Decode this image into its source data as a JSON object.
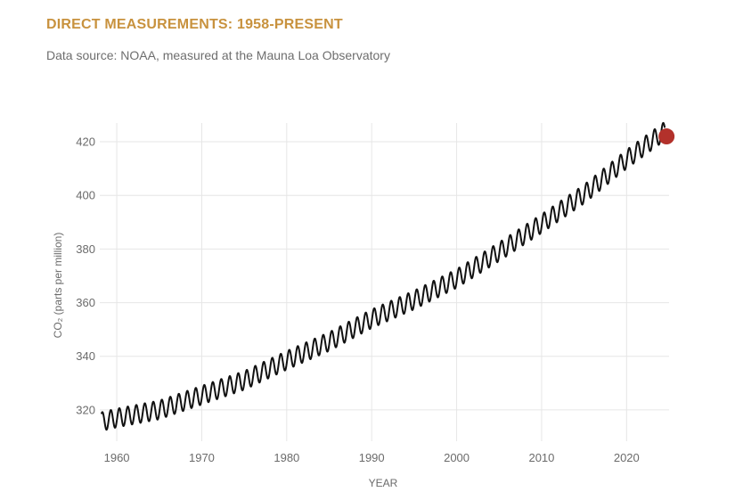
{
  "header": {
    "title": "DIRECT MEASUREMENTS: 1958-PRESENT",
    "subtitle": "Data source: NOAA, measured at the Mauna Loa Observatory"
  },
  "colors": {
    "title": "#c8923e",
    "line": "#111111",
    "marker": "#b3312b",
    "grid": "#e6e6e6"
  },
  "chart_data": {
    "type": "line",
    "title": "DIRECT MEASUREMENTS: 1958-PRESENT",
    "subtitle": "Data source: NOAA, measured at the Mauna Loa Observatory",
    "xlabel": "YEAR",
    "ylabel": "CO₂ (parts per million)",
    "xlim": [
      1958,
      2025
    ],
    "ylim": [
      310,
      427
    ],
    "x_ticks": [
      1960,
      1970,
      1980,
      1990,
      2000,
      2010,
      2020
    ],
    "y_ticks": [
      320,
      340,
      360,
      380,
      400,
      420
    ],
    "grid": true,
    "series": [
      {
        "x": [
          1958,
          1960,
          1965,
          1970,
          1975,
          1980,
          1985,
          1990,
          1995,
          2000,
          2005,
          2010,
          2015,
          2020,
          2024.5
        ],
        "values": [
          315.5,
          317,
          320,
          325.5,
          331,
          338.5,
          345.5,
          354,
          361,
          369,
          379,
          389.5,
          400.5,
          413.5,
          424
        ],
        "seasonal_amplitude": 3.5
      }
    ],
    "highlight_point": {
      "x": 2024.7,
      "y": 422
    }
  }
}
